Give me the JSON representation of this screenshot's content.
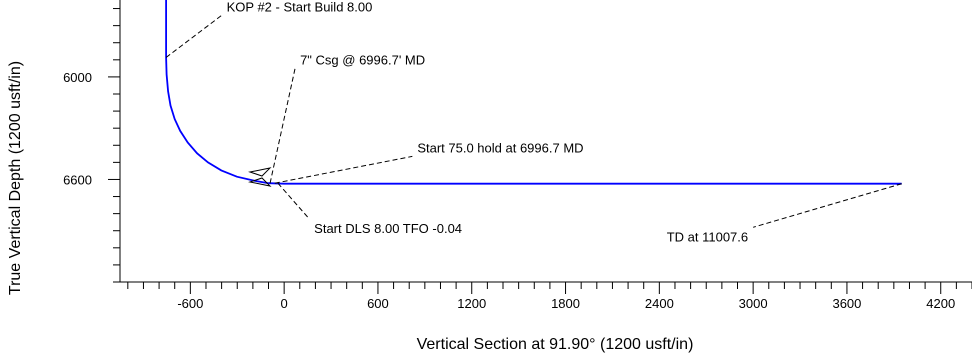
{
  "chart_data": {
    "type": "line",
    "title": "",
    "xlabel": "Vertical Section at 91.90° (1200 usft/in)",
    "ylabel": "True Vertical Depth (1200 usft/in)",
    "xlim": [
      -1050,
      4400
    ],
    "ylim": [
      5550,
      7200
    ],
    "y_inverted": true,
    "x_major_ticks": [
      -600,
      0,
      600,
      1200,
      1800,
      2400,
      3000,
      3600,
      4200
    ],
    "x_tick_labels": [
      "-600",
      "0",
      "600",
      "1200",
      "1800",
      "2400",
      "3000",
      "3600",
      "4200"
    ],
    "y_major_ticks": [
      6000,
      6600
    ],
    "y_tick_labels": [
      "6000",
      "6600"
    ],
    "grid": false,
    "line_color": "#0000ff",
    "series": [
      {
        "values": [
          [
            -755,
            5550
          ],
          [
            -755,
            5886
          ],
          [
            -752,
            5986
          ],
          [
            -742,
            6085
          ],
          [
            -727,
            6167
          ],
          [
            -700,
            6247
          ],
          [
            -665,
            6316
          ],
          [
            -617,
            6384
          ],
          [
            -557,
            6447
          ],
          [
            -487,
            6500
          ],
          [
            -402,
            6547
          ],
          [
            -302,
            6584
          ],
          [
            -190,
            6608
          ],
          [
            -100,
            6622
          ],
          [
            0,
            6625
          ],
          [
            3950,
            6625
          ]
        ]
      }
    ],
    "annotations": [
      {
        "text": "KOP #2 - Start Build 8.00",
        "anchor": [
          -755,
          5886
        ],
        "label_pos": [
          -400,
          5640
        ]
      },
      {
        "text": "7\" Csg @ 6996.7' MD",
        "anchor": [
          -90,
          6622
        ],
        "label_pos": [
          70,
          5950
        ]
      },
      {
        "text": "Start 75.0 hold at 6996.7 MD",
        "anchor": [
          -60,
          6622
        ],
        "label_pos": [
          820,
          6465
        ]
      },
      {
        "text": "Start DLS 8.00 TFO -0.04",
        "anchor": [
          -40,
          6622
        ],
        "label_pos": [
          160,
          6830
        ]
      },
      {
        "text": "TD at 11007.6",
        "anchor": [
          3950,
          6625
        ],
        "label_pos": [
          3000,
          6880
        ]
      }
    ]
  }
}
